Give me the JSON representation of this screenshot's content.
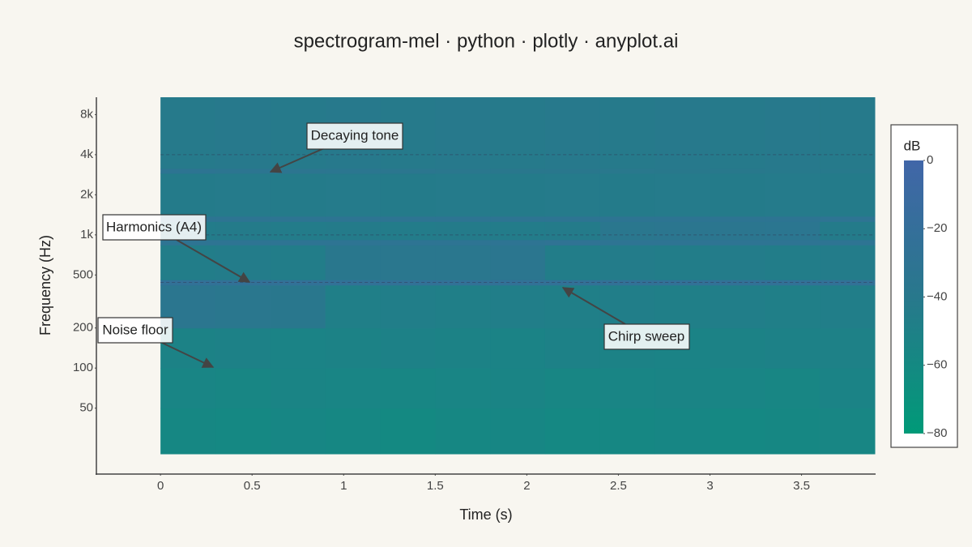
{
  "chart_data": {
    "type": "heatmap",
    "title": "spectrogram-mel · python · plotly · anyplot.ai",
    "x_label": "Time (s)",
    "y_label": "Frequency (Hz)",
    "xlim": [
      -0.35,
      3.9
    ],
    "xticks": [
      0,
      0.5,
      1,
      1.5,
      2,
      2.5,
      3,
      3.5
    ],
    "ylim": [
      16,
      10800
    ],
    "y_scale": "log",
    "yticks": [
      {
        "value": 50,
        "label": "50"
      },
      {
        "value": 100,
        "label": "100"
      },
      {
        "value": 200,
        "label": "200"
      },
      {
        "value": 500,
        "label": "500"
      },
      {
        "value": 1000,
        "label": "1k"
      },
      {
        "value": 2000,
        "label": "2k"
      },
      {
        "value": 4000,
        "label": "4k"
      },
      {
        "value": 8000,
        "label": "8k"
      }
    ],
    "x_bins": [
      0,
      0.3,
      0.6,
      0.9,
      1.2,
      1.5,
      1.8,
      2.1,
      2.4,
      2.7,
      3.0,
      3.3,
      3.6,
      3.9
    ],
    "y_bins": [
      22.7,
      50,
      100,
      200,
      420,
      460,
      840,
      920,
      1260,
      1380,
      2900,
      3150,
      10800
    ],
    "z": [
      [
        -58,
        -59,
        -57,
        -58,
        -60,
        -58,
        -57,
        -59,
        -58,
        -57,
        -59,
        -58,
        -56
      ],
      [
        -55,
        -56,
        -54,
        -55,
        -56,
        -55,
        -54,
        -56,
        -55,
        -54,
        -55,
        -56,
        -53
      ],
      [
        -52,
        -51,
        -53,
        -52,
        -51,
        -52,
        -53,
        -51,
        -52,
        -53,
        -52,
        -51,
        -50
      ],
      [
        -36,
        -37,
        -38,
        -48,
        -47,
        -48,
        -47,
        -48,
        -47,
        -48,
        -47,
        -48,
        -47
      ],
      [
        -24,
        -24,
        -24,
        -24,
        -24,
        -24,
        -24,
        -24,
        -24,
        -24,
        -24,
        -24,
        -24
      ],
      [
        -46,
        -45,
        -46,
        -38,
        -37,
        -37,
        -36,
        -46,
        -45,
        -46,
        -45,
        -46,
        -45
      ],
      [
        -30,
        -30,
        -30,
        -30,
        -30,
        -30,
        -30,
        -28,
        -30,
        -30,
        -30,
        -30,
        -30
      ],
      [
        -45,
        -44,
        -45,
        -44,
        -45,
        -44,
        -45,
        -44,
        -37,
        -36,
        -36,
        -35,
        -44
      ],
      [
        -32,
        -32,
        -32,
        -32,
        -32,
        -32,
        -32,
        -32,
        -32,
        -32,
        -32,
        -32,
        -30
      ],
      [
        -44,
        -43,
        -44,
        -43,
        -44,
        -43,
        -44,
        -43,
        -44,
        -43,
        -44,
        -43,
        -44
      ],
      [
        -32,
        -33,
        -34,
        -35,
        -36,
        -37,
        -38,
        -38,
        -39,
        -40,
        -40,
        -41,
        -41
      ],
      [
        -42,
        -41,
        -42,
        -41,
        -42,
        -41,
        -42,
        -41,
        -42,
        -41,
        -42,
        -41,
        -42
      ]
    ],
    "zlim": [
      -80,
      0
    ],
    "colorscale": [
      {
        "value": -80,
        "color": "#009a78"
      },
      {
        "value": -40,
        "color": "#28788c"
      },
      {
        "value": 0,
        "color": "#4166a8"
      }
    ],
    "colorbar_title": "dB",
    "colorbar_ticks": [
      {
        "value": 0,
        "label": "0"
      },
      {
        "value": -20,
        "label": "−20"
      },
      {
        "value": -40,
        "label": "−40"
      },
      {
        "value": -60,
        "label": "−60"
      },
      {
        "value": -80,
        "label": "−80"
      }
    ],
    "reference_lines": [
      4000,
      1000,
      440
    ],
    "annotations": [
      "Decaying tone",
      "Harmonics (A4)",
      "Noise floor",
      "Chirp sweep"
    ]
  }
}
